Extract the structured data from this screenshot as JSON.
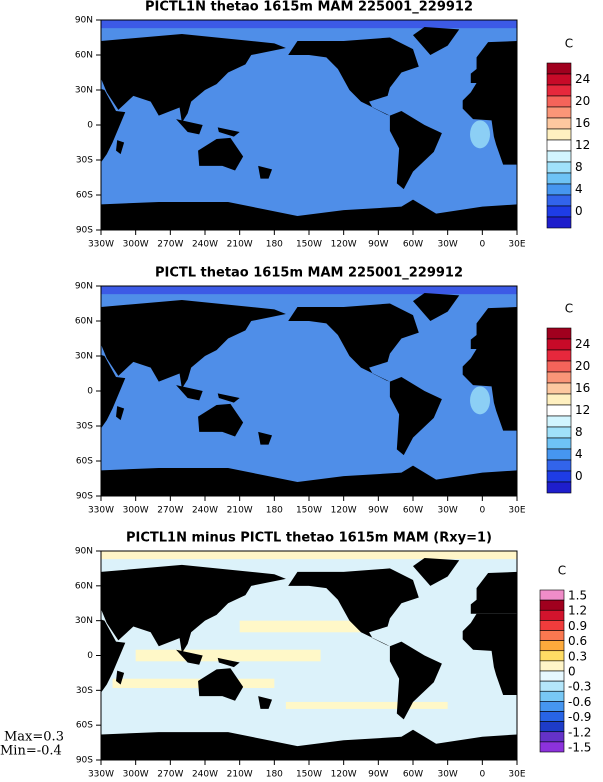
{
  "panels": [
    {
      "title": "PICTL1N thetao 1615m MAM 225001_229912",
      "lat_labels": [
        "90N",
        "60N",
        "30N",
        "0",
        "30S",
        "60S",
        "90S"
      ],
      "lon_labels": [
        "330W",
        "300W",
        "270W",
        "240W",
        "210W",
        "180",
        "150W",
        "120W",
        "90W",
        "60W",
        "30W",
        "0",
        "30E"
      ],
      "colorbar": {
        "unit": "C",
        "labels": [
          "24",
          "20",
          "16",
          "12",
          "8",
          "4",
          "0"
        ],
        "colors": [
          "#a0001e",
          "#c80a28",
          "#e6283c",
          "#f5645a",
          "#fa9678",
          "#fdc8a0",
          "#fff0c0",
          "#ffffff",
          "#d2f5ff",
          "#a0e1fa",
          "#6ec3f5",
          "#4696f0",
          "#3264eb",
          "#1e3ce6",
          "#1e1ecc"
        ]
      }
    },
    {
      "title": "PICTL thetao 1615m MAM 225001_229912",
      "lat_labels": [
        "90N",
        "60N",
        "30N",
        "0",
        "30S",
        "60S",
        "90S"
      ],
      "lon_labels": [
        "330W",
        "300W",
        "270W",
        "240W",
        "210W",
        "180",
        "150W",
        "120W",
        "90W",
        "60W",
        "30W",
        "0",
        "30E"
      ],
      "colorbar": {
        "unit": "C",
        "labels": [
          "24",
          "20",
          "16",
          "12",
          "8",
          "4",
          "0"
        ],
        "colors": [
          "#a0001e",
          "#c80a28",
          "#e6283c",
          "#f5645a",
          "#fa9678",
          "#fdc8a0",
          "#fff0c0",
          "#ffffff",
          "#d2f5ff",
          "#a0e1fa",
          "#6ec3f5",
          "#4696f0",
          "#3264eb",
          "#1e3ce6",
          "#1e1ecc"
        ]
      }
    },
    {
      "title": "PICTL1N minus PICTL thetao 1615m MAM (Rxy=1)",
      "lat_labels": [
        "90N",
        "60N",
        "30N",
        "0",
        "30S",
        "60S",
        "90S"
      ],
      "lon_labels": [
        "330W",
        "300W",
        "270W",
        "240W",
        "210W",
        "180",
        "150W",
        "120W",
        "90W",
        "60W",
        "30W",
        "0",
        "30E"
      ],
      "colorbar": {
        "unit": "C",
        "labels": [
          "1.5",
          "1.2",
          "0.9",
          "0.6",
          "0.3",
          "0",
          "-0.3",
          "-0.6",
          "-0.9",
          "-1.2",
          "-1.5"
        ],
        "colors": [
          "#f08cc8",
          "#a0001e",
          "#d2142d",
          "#f03c3c",
          "#fa7850",
          "#fdaa3c",
          "#ffdc64",
          "#fff5c8",
          "#e6f8ff",
          "#b4e6fa",
          "#78c8f5",
          "#4696f0",
          "#2864e6",
          "#1e3cc8",
          "#6432c8",
          "#8c32dc"
        ]
      }
    }
  ],
  "stats": {
    "max": "Max=0.3",
    "min": "Min=-0.4"
  }
}
